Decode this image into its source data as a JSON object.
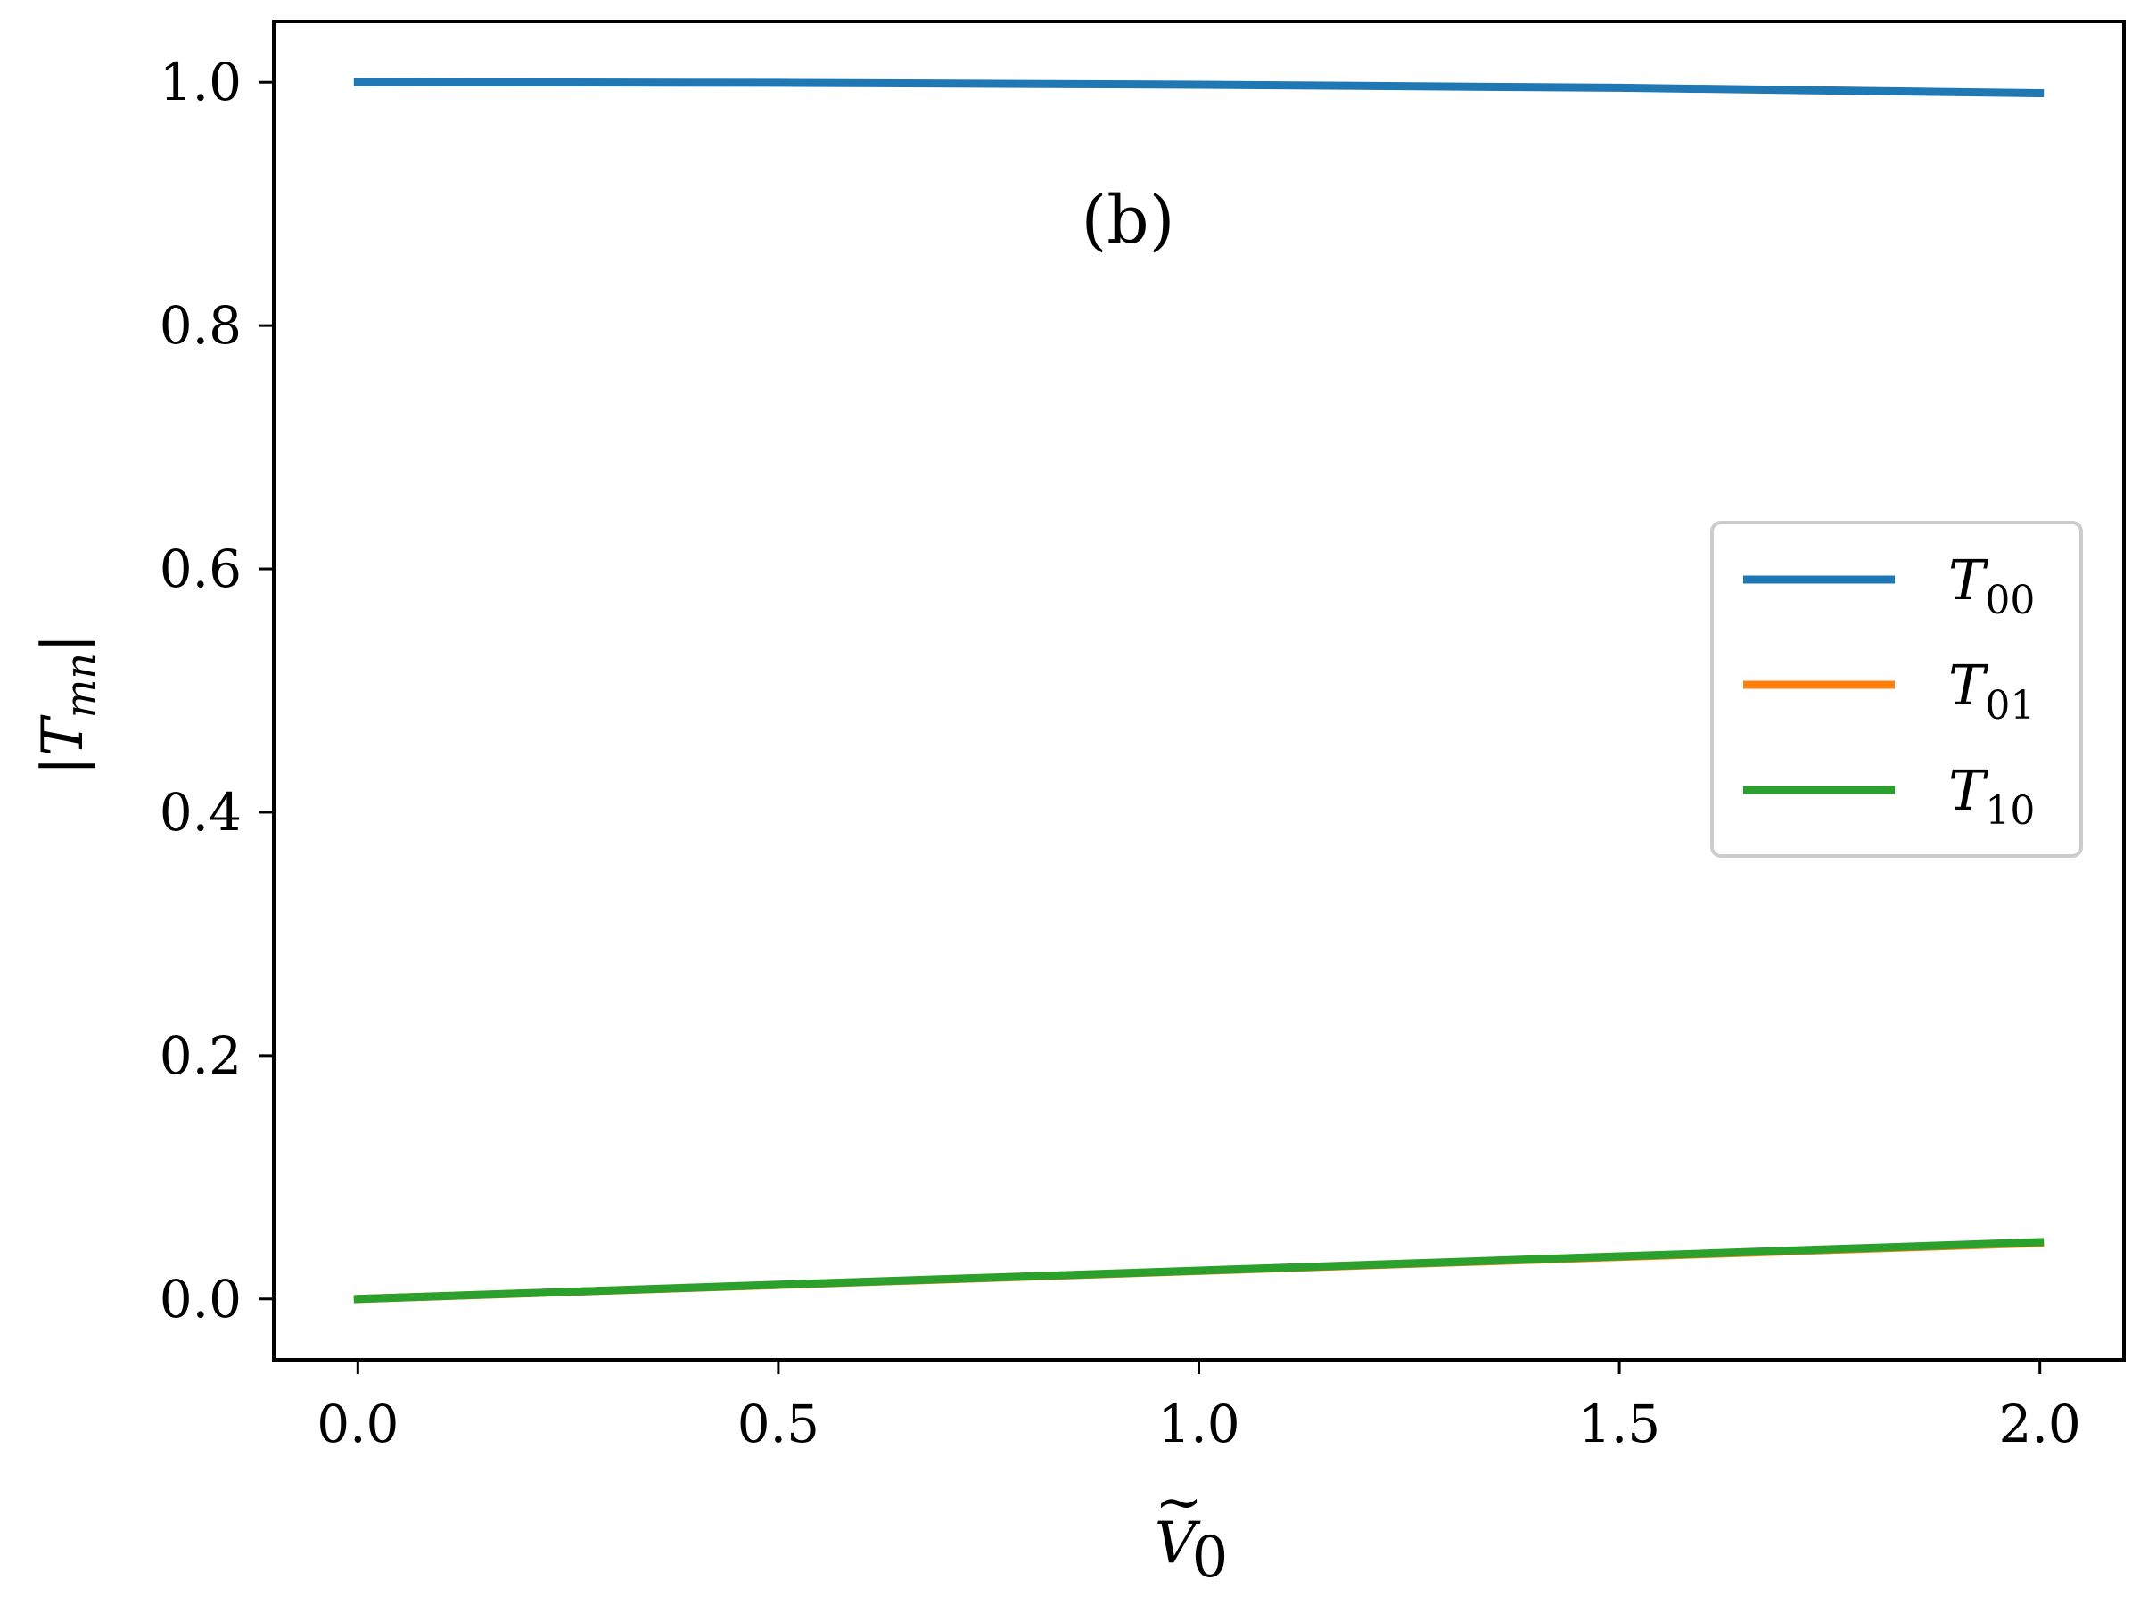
{
  "chart_data": {
    "type": "line",
    "annotation": "(b)",
    "xlabel": "Ṽ0",
    "ylabel": "|Tmn|",
    "xlim": [
      -0.1,
      2.1
    ],
    "ylim": [
      -0.05,
      1.05
    ],
    "xticks": [
      "0.0",
      "0.5",
      "1.0",
      "1.5",
      "2.0"
    ],
    "yticks": [
      "0.0",
      "0.2",
      "0.4",
      "0.6",
      "0.8",
      "1.0"
    ],
    "legend_position": "center-right",
    "series": [
      {
        "name": "T00",
        "color": "#1f77b4",
        "x": [
          0.0,
          0.5,
          1.0,
          1.5,
          2.0
        ],
        "y": [
          1.0,
          0.9995,
          0.998,
          0.9955,
          0.991
        ]
      },
      {
        "name": "T01",
        "color": "#ff7f0e",
        "x": [
          0.0,
          0.5,
          1.0,
          1.5,
          2.0
        ],
        "y": [
          0.0,
          0.0115,
          0.023,
          0.0345,
          0.046
        ]
      },
      {
        "name": "T10",
        "color": "#2ca02c",
        "x": [
          0.0,
          0.5,
          1.0,
          1.5,
          2.0
        ],
        "y": [
          0.0,
          0.0117,
          0.0233,
          0.035,
          0.0467
        ]
      }
    ]
  }
}
